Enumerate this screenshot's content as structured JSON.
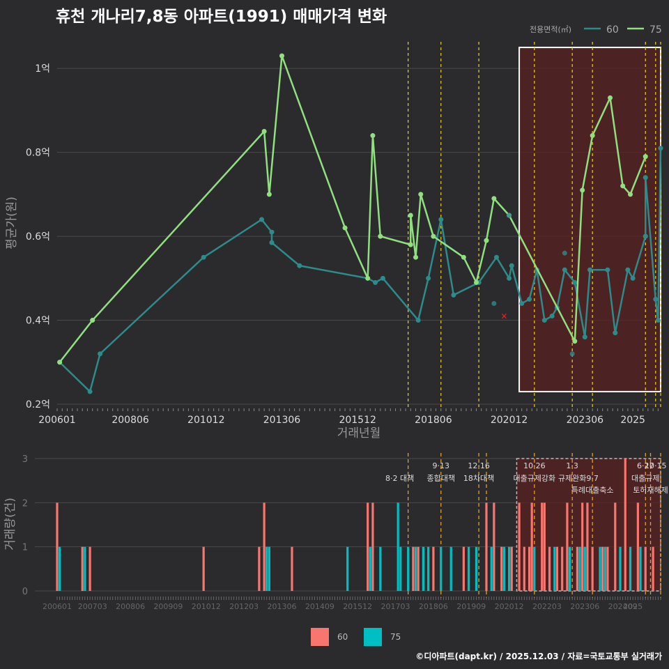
{
  "title": "휴천 개나리7,8동 아파트(1991) 매매가격 변화",
  "footer": "©디아파트(dapt.kr) / 2025.12.03 / 자료=국토교통부 실거래가",
  "colors": {
    "bg": "#2b2b2d",
    "grid": "#4a4a4a",
    "s60": "#2e8b8b",
    "s75": "#90e080",
    "vol60": "#f8766d",
    "vol75": "#00bfc4",
    "vline": "#e6c619",
    "shade": "#5a2020"
  },
  "chart_data": [
    {
      "type": "line",
      "title": "휴천 개나리7,8동 아파트(1991) 매매가격 변화",
      "xlabel": "거래년월",
      "ylabel": "평균가(원)",
      "x_range": [
        "200601",
        "202512"
      ],
      "ylim": [
        0.2,
        1.08
      ],
      "y_ticks": [
        {
          "v": 0.2,
          "label": "0.2억"
        },
        {
          "v": 0.4,
          "label": "0.4억"
        },
        {
          "v": 0.6,
          "label": "0.6억"
        },
        {
          "v": 0.8,
          "label": "0.8억"
        },
        {
          "v": 1.0,
          "label": "1억"
        }
      ],
      "x_ticks": [
        "200601",
        "200806",
        "201012",
        "201306",
        "201512",
        "201806",
        "202012",
        "202306",
        "2025"
      ],
      "legend": {
        "title": "전용면적(㎡)",
        "items": [
          "60",
          "75"
        ],
        "position": "top-right"
      },
      "series": [
        {
          "name": "60",
          "points": [
            [
              "2006-02",
              0.3
            ],
            [
              "2007-02",
              0.23
            ],
            [
              "2007-06",
              0.32
            ],
            [
              "2010-11",
              0.55
            ],
            [
              "2012-10",
              0.64
            ],
            [
              "2013-02",
              0.61
            ],
            [
              "2013-02",
              0.585
            ],
            [
              "2014-01",
              0.53
            ],
            [
              "2016-04",
              0.5
            ],
            [
              "2016-07",
              0.49
            ],
            [
              "2016-10",
              0.5
            ],
            [
              "2017-12",
              0.4
            ],
            [
              "2018-04",
              0.5
            ],
            [
              "2018-09",
              0.64
            ],
            [
              "2019-02",
              0.46
            ],
            [
              "2019-12",
              0.49
            ],
            [
              "2020-07",
              0.55
            ],
            [
              "2020-12",
              0.5
            ],
            [
              "2021-01",
              0.53
            ],
            [
              "2021-05",
              0.44
            ],
            [
              "2021-08",
              0.45
            ],
            [
              "2021-11",
              0.52
            ],
            [
              "2022-02",
              0.4
            ],
            [
              "2022-05",
              0.41
            ],
            [
              "2022-07",
              0.43
            ],
            [
              "2022-10",
              0.52
            ],
            [
              "2023-02",
              0.49
            ],
            [
              "2023-06",
              0.36
            ],
            [
              "2023-08",
              0.52
            ],
            [
              "2024-03",
              0.52
            ],
            [
              "2024-06",
              0.37
            ],
            [
              "2024-11",
              0.52
            ],
            [
              "2025-01",
              0.5
            ],
            [
              "2025-06",
              0.6
            ],
            [
              "2025-06",
              0.74
            ],
            [
              "2025-10",
              0.45
            ],
            [
              "2025-11",
              0.4
            ],
            [
              "2025-12",
              0.81
            ]
          ]
        },
        {
          "name": "75",
          "points": [
            [
              "2006-02",
              0.3
            ],
            [
              "2007-03",
              0.4
            ],
            [
              "2012-11",
              0.85
            ],
            [
              "2013-01",
              0.7
            ],
            [
              "2013-06",
              1.03
            ],
            [
              "2015-07",
              0.62
            ],
            [
              "2016-04",
              0.5
            ],
            [
              "2016-06",
              0.84
            ],
            [
              "2016-09",
              0.6
            ],
            [
              "2017-09",
              0.58
            ],
            [
              "2017-09",
              0.65
            ],
            [
              "2017-11",
              0.55
            ],
            [
              "2018-01",
              0.7
            ],
            [
              "2018-06",
              0.6
            ],
            [
              "2019-06",
              0.55
            ],
            [
              "2019-11",
              0.49
            ],
            [
              "2020-03",
              0.59
            ],
            [
              "2020-06",
              0.69
            ],
            [
              "2020-12",
              0.65
            ],
            [
              "2023-02",
              0.35
            ],
            [
              "2023-05",
              0.71
            ],
            [
              "2023-09",
              0.84
            ],
            [
              "2024-04",
              0.93
            ],
            [
              "2024-09",
              0.72
            ],
            [
              "2024-12",
              0.7
            ],
            [
              "2025-06",
              0.79
            ]
          ]
        }
      ],
      "scatter_extra": [
        [
          "2020-12",
          0.65
        ],
        [
          "2020-06",
          0.44
        ],
        [
          "2022-10",
          0.56
        ],
        [
          "2023-01",
          0.32
        ],
        [
          "2025-06",
          0.6
        ]
      ],
      "marker_x": [
        [
          "2020-10",
          0.41
        ]
      ],
      "highlight_region": {
        "from": "2021-04",
        "to": "2025-12",
        "ylim": [
          0.23,
          1.05
        ]
      },
      "vlines": [
        "2017-08",
        "2018-09",
        "2019-12",
        "2021-10",
        "2023-01",
        "2023-09",
        "2025-06",
        "2025-10",
        "2025-12"
      ]
    },
    {
      "type": "bar",
      "ylabel": "거래량(건)",
      "ylim": [
        0,
        3
      ],
      "y_ticks": [
        "0",
        "1",
        "2",
        "3"
      ],
      "x_ticks": [
        "200601",
        "200703",
        "200806",
        "200909",
        "201012",
        "201203",
        "201306",
        "201409",
        "201512",
        "201703",
        "201806",
        "201909",
        "202012",
        "202203",
        "202306",
        "202409",
        "2025"
      ],
      "legend": {
        "items": [
          "60",
          "75"
        ],
        "position": "bottom"
      },
      "series": [
        {
          "name": "60",
          "bars": [
            [
              "2006-01",
              2
            ],
            [
              "2006-11",
              1
            ],
            [
              "2007-02",
              1
            ],
            [
              "2010-11",
              1
            ],
            [
              "2012-09",
              1
            ],
            [
              "2012-11",
              2
            ],
            [
              "2013-10",
              1
            ],
            [
              "2016-04",
              2
            ],
            [
              "2016-06",
              2
            ],
            [
              "2017-10",
              1
            ],
            [
              "2017-12",
              1
            ],
            [
              "2018-06",
              1
            ],
            [
              "2019-06",
              1
            ],
            [
              "2020-03",
              2
            ],
            [
              "2020-06",
              2
            ],
            [
              "2020-09",
              1
            ],
            [
              "2021-01",
              1
            ],
            [
              "2021-04",
              2
            ],
            [
              "2021-06",
              1
            ],
            [
              "2021-08",
              1
            ],
            [
              "2021-09",
              2
            ],
            [
              "2022-01",
              2
            ],
            [
              "2022-02",
              2
            ],
            [
              "2022-04",
              1
            ],
            [
              "2022-07",
              1
            ],
            [
              "2022-09",
              1
            ],
            [
              "2022-11",
              2
            ],
            [
              "2023-03",
              1
            ],
            [
              "2023-05",
              2
            ],
            [
              "2023-07",
              2
            ],
            [
              "2023-09",
              1
            ],
            [
              "2024-01",
              1
            ],
            [
              "2024-03",
              1
            ],
            [
              "2024-06",
              2
            ],
            [
              "2024-10",
              3
            ],
            [
              "2025-03",
              2
            ],
            [
              "2025-06",
              1
            ],
            [
              "2025-09",
              1
            ]
          ]
        },
        {
          "name": "75",
          "bars": [
            [
              "2006-02",
              1
            ],
            [
              "2006-12",
              1
            ],
            [
              "2012-12",
              1
            ],
            [
              "2013-01",
              1
            ],
            [
              "2015-08",
              1
            ],
            [
              "2016-05",
              1
            ],
            [
              "2016-09",
              1
            ],
            [
              "2017-04",
              2
            ],
            [
              "2017-05",
              1
            ],
            [
              "2017-08",
              1
            ],
            [
              "2017-11",
              1
            ],
            [
              "2018-02",
              1
            ],
            [
              "2018-04",
              1
            ],
            [
              "2018-09",
              1
            ],
            [
              "2019-01",
              1
            ],
            [
              "2019-08",
              1
            ],
            [
              "2019-11",
              1
            ],
            [
              "2020-05",
              1
            ],
            [
              "2020-10",
              1
            ],
            [
              "2020-12",
              1
            ],
            [
              "2021-10",
              1
            ],
            [
              "2022-06",
              1
            ],
            [
              "2022-12",
              1
            ],
            [
              "2023-04",
              1
            ],
            [
              "2023-06",
              1
            ],
            [
              "2023-12",
              1
            ],
            [
              "2024-02",
              1
            ],
            [
              "2024-08",
              1
            ],
            [
              "2024-12",
              1
            ],
            [
              "2025-04",
              1
            ]
          ]
        }
      ],
      "annotations": [
        {
          "at": "2017-08",
          "label": "8·2 대책",
          "row": 1
        },
        {
          "at": "2018-09",
          "label": "9·13",
          "row": 0
        },
        {
          "at": "2018-09",
          "label": "종합대책",
          "row": 1
        },
        {
          "at": "2019-12",
          "label": "12·16",
          "row": 0
        },
        {
          "at": "2019-12",
          "label": "18차대책",
          "row": 1
        },
        {
          "at": "2021-10",
          "label": "10·26",
          "row": 0
        },
        {
          "at": "2021-10",
          "label": "대출규제강화",
          "row": 1
        },
        {
          "at": "2023-01",
          "label": "1·3",
          "row": 0
        },
        {
          "at": "2023-01",
          "label": "규제완화",
          "row": 1
        },
        {
          "at": "2023-09",
          "label": "9·7",
          "row": 1
        },
        {
          "at": "2023-09",
          "label": "특례대출축소",
          "row": 2
        },
        {
          "at": "2025-06",
          "label": "6·27",
          "row": 0
        },
        {
          "at": "2025-06",
          "label": "대출규제",
          "row": 1
        },
        {
          "at": "2025-08",
          "label": "토허재해제",
          "row": 2
        },
        {
          "at": "2025-10",
          "label": "10·15",
          "row": 0
        }
      ],
      "highlight_region": {
        "from": "2021-03",
        "to": "2025-12"
      },
      "vlines": [
        "2017-08",
        "2018-09",
        "2019-12",
        "2020-03",
        "2021-10",
        "2023-01",
        "2023-09",
        "2025-06",
        "2025-08",
        "2025-12"
      ]
    }
  ]
}
